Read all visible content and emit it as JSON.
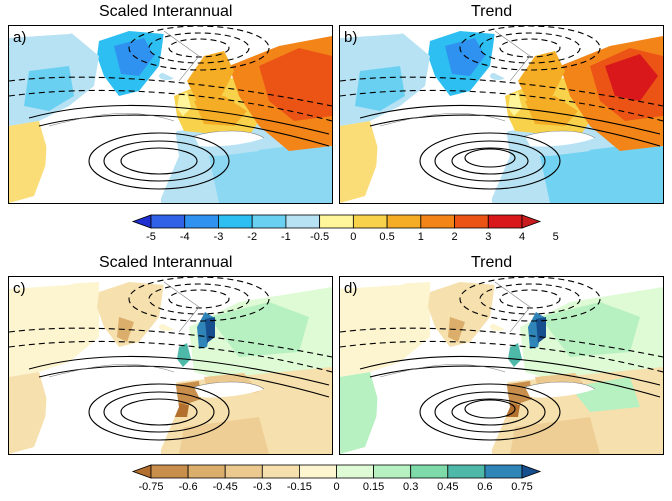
{
  "titles": {
    "scaled_interannual": "Scaled Interannual",
    "trend": "Trend"
  },
  "panels": [
    {
      "label": "a)",
      "title": "Scaled Interannual",
      "field": "temperature"
    },
    {
      "label": "b)",
      "title": "Trend",
      "field": "temperature"
    },
    {
      "label": "c)",
      "title": "Scaled Interannual",
      "field": "precipitation"
    },
    {
      "label": "d)",
      "title": "Trend",
      "field": "precipitation"
    }
  ],
  "colorbar_top": {
    "ticks": [
      "-5",
      "-4",
      "-3",
      "-2",
      "-1",
      "-0.5",
      "0",
      "0.5",
      "1",
      "2",
      "3",
      "4",
      "5"
    ],
    "colors": [
      "#1f2fd0",
      "#2f62e6",
      "#2f92f0",
      "#2ebff2",
      "#6ad0f2",
      "#b6e2f4",
      "#fff59a",
      "#f8d24a",
      "#f6ad26",
      "#f38518",
      "#ec5416",
      "#d8181b",
      "#c81c1f"
    ]
  },
  "colorbar_bottom": {
    "ticks": [
      "-0.75",
      "-0.6",
      "-0.45",
      "-0.3",
      "-0.15",
      "0",
      "0.15",
      "0.3",
      "0.45",
      "0.6",
      "0.75"
    ],
    "colors": [
      "#b26f2d",
      "#c88e4c",
      "#dcae6b",
      "#ecc98e",
      "#f6e0ad",
      "#fdf4d0",
      "#dffbd6",
      "#b7f0c1",
      "#7fdaa9",
      "#4eb9a9",
      "#2f85b7",
      "#164e8e"
    ]
  }
}
